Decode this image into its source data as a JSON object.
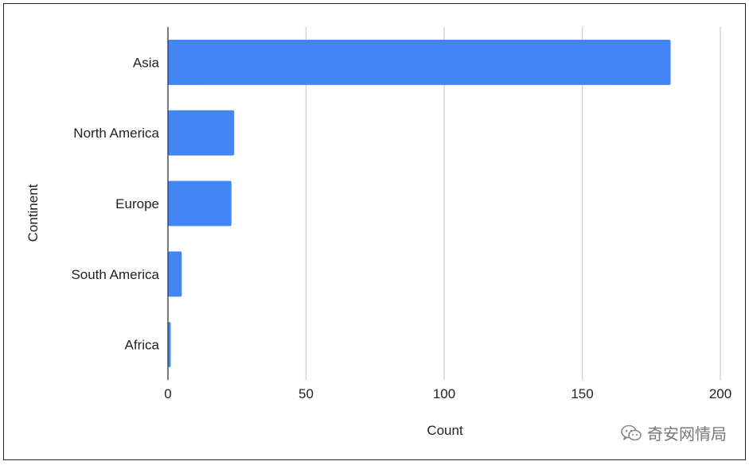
{
  "chart_data": {
    "type": "bar",
    "orientation": "horizontal",
    "categories": [
      "Asia",
      "North America",
      "Europe",
      "South America",
      "Africa"
    ],
    "values": [
      182,
      24,
      23,
      5,
      1
    ],
    "xlabel": "Count",
    "ylabel": "Continent",
    "xlim": [
      0,
      200
    ],
    "xticks": [
      0,
      50,
      100,
      150,
      200
    ],
    "grid": true,
    "bar_color": "#4285F4",
    "grid_color": "#cccccc"
  },
  "watermark": {
    "text": "奇安网情局",
    "icon": "wechat-icon"
  }
}
